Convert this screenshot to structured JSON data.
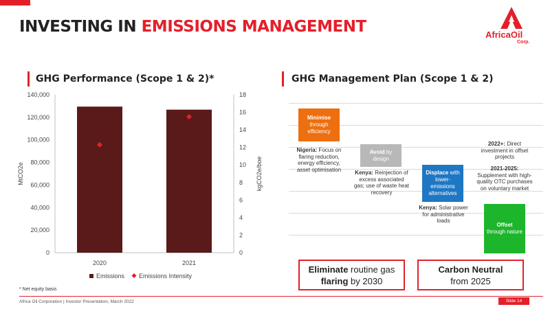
{
  "header": {
    "title_main": "INVESTING IN ",
    "title_accent": "EMISSIONS MANAGEMENT",
    "logo_name": "AfricaOil",
    "logo_corp": "Corp."
  },
  "colors": {
    "accent": "#e3202a",
    "bar": "#5a1a1a",
    "marker": "#e3202a",
    "minimise": "#ed6f0f",
    "avoid": "#b8b8b8",
    "displace": "#1f77c4",
    "offset": "#1db52c"
  },
  "left_section": {
    "title": "GHG Performance (Scope 1 & 2)*"
  },
  "right_section": {
    "title": "GHG Management Plan (Scope 1 & 2)"
  },
  "chart_data": {
    "type": "bar",
    "categories": [
      "2020",
      "2021"
    ],
    "series": [
      {
        "name": "Emissions",
        "type": "bar",
        "axis": "left",
        "values": [
          129500,
          126800
        ]
      },
      {
        "name": "Emissions Intensity",
        "type": "scatter",
        "axis": "right",
        "values": [
          12.3,
          15.5
        ]
      }
    ],
    "ylabel": "MtCO2e",
    "y2label": "kgCO2e/boe",
    "ylim": [
      0,
      140000
    ],
    "y2lim": [
      0,
      18
    ],
    "yticks": [
      "0",
      "20,000",
      "40,000",
      "60,000",
      "80,000",
      "100,000",
      "120,000",
      "140,000"
    ],
    "y2ticks": [
      "0",
      "2",
      "4",
      "6",
      "8",
      "10",
      "12",
      "14",
      "16",
      "18"
    ],
    "legend_position": "bottom",
    "grid": false
  },
  "plan": {
    "minimise": {
      "bold": "Minimise",
      "rest": "through efficiency"
    },
    "minimise_note": {
      "bold": "Nigeria:",
      "rest": " Focus on flaring reduction, energy efficiency, asset optimisation"
    },
    "avoid": {
      "bold": "Avoid",
      "rest": " by design"
    },
    "avoid_note": {
      "bold": "Kenya:",
      "rest": " Reinjection of excess associated gas; use of waste heat recovery"
    },
    "displace": {
      "bold": "Displace",
      "rest": " with lower-emissions alternatives"
    },
    "displace_note": {
      "bold": "Kenya:",
      "rest": " Solar power for administrative loads"
    },
    "offset_note_1": {
      "bold": "2022+:",
      "rest": " Direct investment in offset projects"
    },
    "offset_note_2": {
      "bold": "2021-2025:",
      "rest": " Supplement with high-quality OTC purchases on voluntary market"
    },
    "offset": {
      "bold": "Offset",
      "rest": "through nature"
    }
  },
  "callouts": {
    "left": {
      "bold1": "Eliminate",
      "rest1": " routine gas",
      "bold2": "flaring",
      "rest2": " by 2030"
    },
    "right": {
      "bold": "Carbon Neutral",
      "rest": "from 2025"
    }
  },
  "footer": {
    "footnote": "* Net equity basis",
    "text": "Africa Oil Corporation  |  Investor Presentation, March 2022",
    "slide": "Slide 14"
  }
}
